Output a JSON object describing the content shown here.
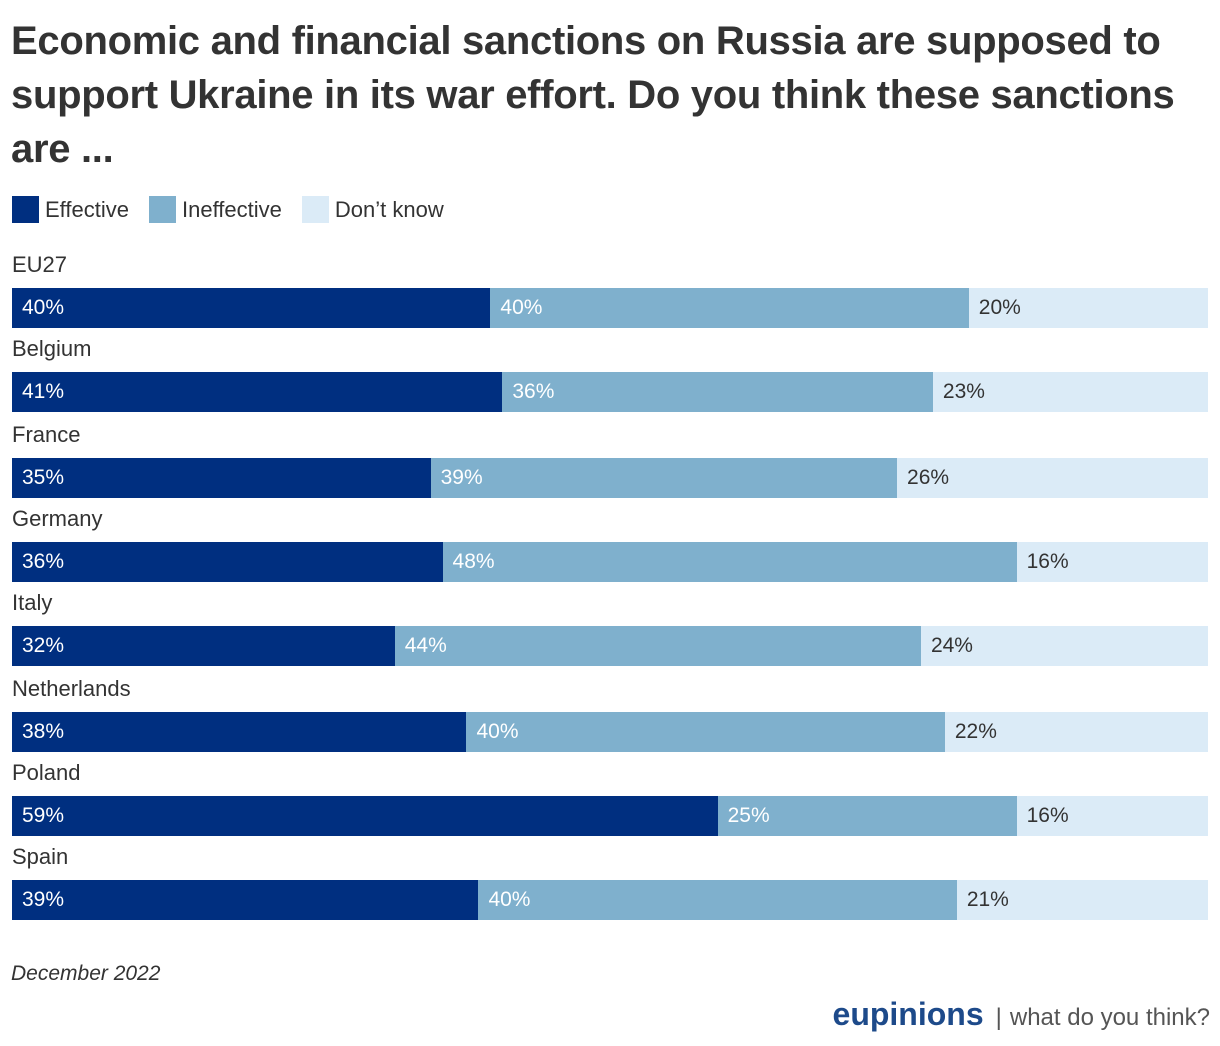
{
  "chart_data": {
    "type": "bar",
    "orientation": "horizontal",
    "stacked": true,
    "title": "Economic and financial sanctions on Russia are supposed to support Ukraine in its war effort. Do you think these sanctions are ...",
    "legend_position": "top-left",
    "categories": [
      "EU27",
      "Belgium",
      "France",
      "Germany",
      "Italy",
      "Netherlands",
      "Poland",
      "Spain"
    ],
    "series": [
      {
        "name": "Effective",
        "color": "#002f80",
        "label_color": "#ffffff",
        "values": [
          40,
          41,
          35,
          36,
          32,
          38,
          59,
          39
        ]
      },
      {
        "name": "Ineffective",
        "color": "#7fb0cd",
        "label_color": "#ffffff",
        "values": [
          40,
          36,
          39,
          48,
          44,
          40,
          25,
          40
        ]
      },
      {
        "name": "Don’t know",
        "color": "#dbebf7",
        "label_color": "#333333",
        "values": [
          20,
          23,
          26,
          16,
          24,
          22,
          16,
          21
        ]
      }
    ],
    "xlim": [
      0,
      100
    ],
    "grid": false,
    "value_suffix": "%"
  },
  "footer": {
    "date": "December 2022",
    "brand": "eupinions",
    "tagline": "what do you think?",
    "separator": "|"
  }
}
